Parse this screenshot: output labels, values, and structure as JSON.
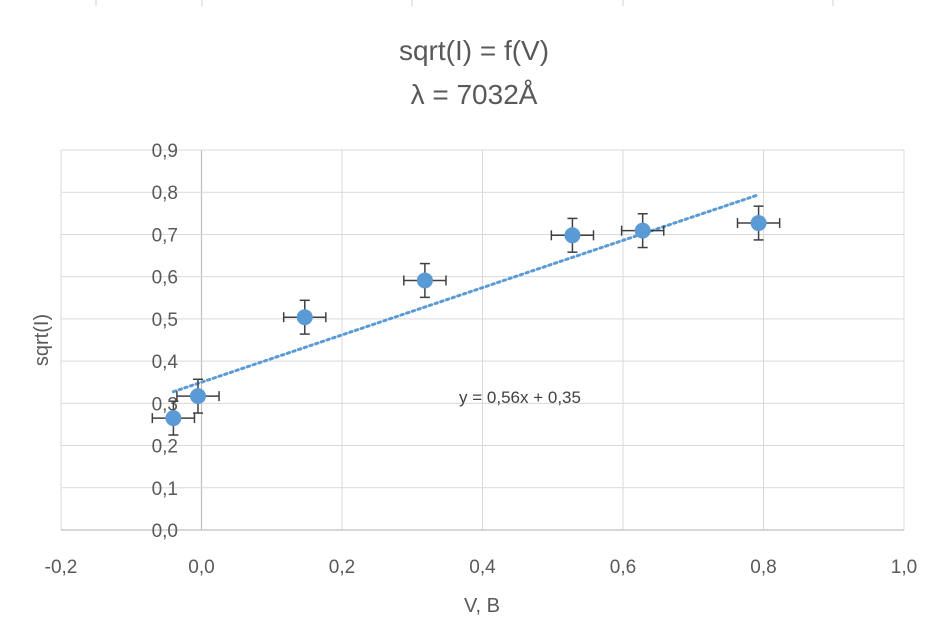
{
  "chart_data": {
    "type": "scatter",
    "title_line1": "sqrt(I) = f(V)",
    "title_line2": "λ = 7032Å",
    "xlabel": "V, B",
    "ylabel": "sqrt(I)",
    "xlim": [
      -0.2,
      1.0
    ],
    "ylim": [
      0.0,
      0.9
    ],
    "x_ticks": [
      "-0,2",
      "0,0",
      "0,2",
      "0,4",
      "0,6",
      "0,8",
      "1,0"
    ],
    "y_ticks": [
      "0,0",
      "0,1",
      "0,2",
      "0,3",
      "0,4",
      "0,5",
      "0,6",
      "0,7",
      "0,8",
      "0,9"
    ],
    "grid": true,
    "points": [
      {
        "x": -0.04,
        "y": 0.265,
        "x_err": 0.03,
        "y_err": 0.04
      },
      {
        "x": -0.005,
        "y": 0.317,
        "x_err": 0.03,
        "y_err": 0.04
      },
      {
        "x": 0.147,
        "y": 0.504,
        "x_err": 0.03,
        "y_err": 0.04
      },
      {
        "x": 0.318,
        "y": 0.591,
        "x_err": 0.03,
        "y_err": 0.04
      },
      {
        "x": 0.528,
        "y": 0.698,
        "x_err": 0.03,
        "y_err": 0.04
      },
      {
        "x": 0.628,
        "y": 0.709,
        "x_err": 0.03,
        "y_err": 0.04
      },
      {
        "x": 0.793,
        "y": 0.727,
        "x_err": 0.03,
        "y_err": 0.04
      }
    ],
    "trendline": {
      "style": "dotted",
      "slope": 0.56,
      "intercept": 0.35,
      "x_range": [
        -0.04,
        0.793
      ],
      "equation_label": "y = 0,56x + 0,35"
    },
    "colors": {
      "points": "#5b9bd5",
      "trendline": "#5b9bd5",
      "error_bars": "#404040"
    }
  }
}
